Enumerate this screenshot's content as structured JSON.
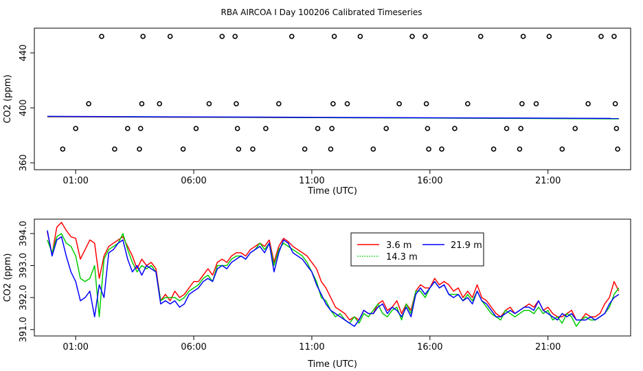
{
  "title": "RBA AIRCOA I  Day 100206  Calibrated Timeseries",
  "chart_data": [
    {
      "type": "scatter",
      "xlabel": "Time (UTC)",
      "ylabel": "CO2 (ppm)",
      "xlim": [
        -0.75,
        24.5
      ],
      "ylim": [
        355,
        458
      ],
      "xticks": [
        {
          "value": 1,
          "label": "01:00"
        },
        {
          "value": 6,
          "label": "06:00"
        },
        {
          "value": 11,
          "label": "11:00"
        },
        {
          "value": 16,
          "label": "16:00"
        },
        {
          "value": 21,
          "label": "21:00"
        }
      ],
      "yticks": [
        {
          "value": 360,
          "label": "360"
        },
        {
          "value": 400,
          "label": "400"
        },
        {
          "value": 440,
          "label": "440"
        }
      ],
      "grid": false,
      "marker": "open-circle",
      "circle_points": [
        {
          "x": 0.45,
          "y": 370
        },
        {
          "x": 1.0,
          "y": 385
        },
        {
          "x": 1.55,
          "y": 403
        },
        {
          "x": 2.1,
          "y": 452
        },
        {
          "x": 2.65,
          "y": 370
        },
        {
          "x": 3.2,
          "y": 385
        },
        {
          "x": 3.7,
          "y": 370
        },
        {
          "x": 3.75,
          "y": 385
        },
        {
          "x": 3.8,
          "y": 403
        },
        {
          "x": 3.85,
          "y": 452
        },
        {
          "x": 4.55,
          "y": 403
        },
        {
          "x": 5.0,
          "y": 452
        },
        {
          "x": 5.55,
          "y": 370
        },
        {
          "x": 6.1,
          "y": 385
        },
        {
          "x": 6.65,
          "y": 403
        },
        {
          "x": 7.2,
          "y": 452
        },
        {
          "x": 7.75,
          "y": 452
        },
        {
          "x": 7.8,
          "y": 403
        },
        {
          "x": 7.85,
          "y": 385
        },
        {
          "x": 7.9,
          "y": 370
        },
        {
          "x": 8.5,
          "y": 370
        },
        {
          "x": 9.05,
          "y": 385
        },
        {
          "x": 9.6,
          "y": 403
        },
        {
          "x": 10.15,
          "y": 452
        },
        {
          "x": 10.7,
          "y": 370
        },
        {
          "x": 11.25,
          "y": 385
        },
        {
          "x": 11.8,
          "y": 370
        },
        {
          "x": 11.85,
          "y": 385
        },
        {
          "x": 11.9,
          "y": 403
        },
        {
          "x": 11.95,
          "y": 452
        },
        {
          "x": 12.5,
          "y": 403
        },
        {
          "x": 13.05,
          "y": 452
        },
        {
          "x": 13.6,
          "y": 370
        },
        {
          "x": 14.15,
          "y": 385
        },
        {
          "x": 14.7,
          "y": 403
        },
        {
          "x": 15.25,
          "y": 452
        },
        {
          "x": 15.8,
          "y": 452
        },
        {
          "x": 15.85,
          "y": 403
        },
        {
          "x": 15.9,
          "y": 385
        },
        {
          "x": 15.95,
          "y": 370
        },
        {
          "x": 16.5,
          "y": 370
        },
        {
          "x": 17.05,
          "y": 385
        },
        {
          "x": 17.6,
          "y": 403
        },
        {
          "x": 18.15,
          "y": 452
        },
        {
          "x": 18.7,
          "y": 370
        },
        {
          "x": 19.25,
          "y": 385
        },
        {
          "x": 19.8,
          "y": 370
        },
        {
          "x": 19.85,
          "y": 385
        },
        {
          "x": 19.9,
          "y": 403
        },
        {
          "x": 19.95,
          "y": 452
        },
        {
          "x": 20.5,
          "y": 403
        },
        {
          "x": 21.05,
          "y": 452
        },
        {
          "x": 21.6,
          "y": 370
        },
        {
          "x": 22.15,
          "y": 385
        },
        {
          "x": 22.7,
          "y": 403
        },
        {
          "x": 23.25,
          "y": 452
        },
        {
          "x": 23.8,
          "y": 452
        },
        {
          "x": 23.85,
          "y": 403
        },
        {
          "x": 23.9,
          "y": 385
        },
        {
          "x": 23.95,
          "y": 370
        }
      ],
      "series": [
        {
          "color": "#ff0000",
          "x": [
            -0.2,
            24.0
          ],
          "values": [
            393.5,
            392.2
          ]
        },
        {
          "color": "#00cc00",
          "x": [
            -0.2,
            24.0
          ],
          "values": [
            393.7,
            392.0
          ]
        },
        {
          "color": "#0000ff",
          "x": [
            -0.2,
            24.0
          ],
          "values": [
            393.8,
            392.3
          ]
        }
      ]
    },
    {
      "type": "line",
      "xlabel": "Time (UTC)",
      "ylabel": "CO2 (ppm)",
      "xlim": [
        -0.75,
        24.5
      ],
      "ylim": [
        390.8,
        394.45
      ],
      "xticks": [
        {
          "value": 1,
          "label": "01:00"
        },
        {
          "value": 6,
          "label": "06:00"
        },
        {
          "value": 11,
          "label": "11:00"
        },
        {
          "value": 16,
          "label": "16:00"
        },
        {
          "value": 21,
          "label": "21:00"
        }
      ],
      "yticks": [
        {
          "value": 391.0,
          "label": "391.0"
        },
        {
          "value": 392.0,
          "label": "392.0"
        },
        {
          "value": 393.0,
          "label": "393.0"
        },
        {
          "value": 394.0,
          "label": "394.0"
        }
      ],
      "grid": false,
      "legend": {
        "placement": "top-center",
        "items": [
          {
            "label": "3.6 m",
            "color": "#ff0000",
            "dash": "solid"
          },
          {
            "label": "21.9 m",
            "color": "#0000ff",
            "dash": "solid"
          },
          {
            "label": "14.3 m",
            "color": "#00cc00",
            "dash": "dotted"
          }
        ]
      },
      "x": [
        -0.2,
        0.0,
        0.2,
        0.4,
        0.6,
        0.8,
        1.0,
        1.2,
        1.4,
        1.6,
        1.8,
        2.0,
        2.2,
        2.4,
        2.6,
        2.8,
        3.0,
        3.2,
        3.4,
        3.6,
        3.8,
        4.0,
        4.2,
        4.4,
        4.6,
        4.8,
        5.0,
        5.2,
        5.4,
        5.6,
        5.8,
        6.0,
        6.2,
        6.4,
        6.6,
        6.8,
        7.0,
        7.2,
        7.4,
        7.6,
        7.8,
        8.0,
        8.2,
        8.4,
        8.6,
        8.8,
        9.0,
        9.2,
        9.4,
        9.6,
        9.8,
        10.0,
        10.2,
        10.4,
        10.6,
        10.8,
        11.0,
        11.2,
        11.4,
        11.6,
        11.8,
        12.0,
        12.2,
        12.4,
        12.6,
        12.8,
        13.0,
        13.2,
        13.4,
        13.6,
        13.8,
        14.0,
        14.2,
        14.4,
        14.6,
        14.8,
        15.0,
        15.2,
        15.4,
        15.6,
        15.8,
        16.0,
        16.2,
        16.4,
        16.6,
        16.8,
        17.0,
        17.2,
        17.4,
        17.6,
        17.8,
        18.0,
        18.2,
        18.4,
        18.6,
        18.8,
        19.0,
        19.2,
        19.4,
        19.6,
        19.8,
        20.0,
        20.2,
        20.4,
        20.6,
        20.8,
        21.0,
        21.2,
        21.4,
        21.6,
        21.8,
        22.0,
        22.2,
        22.4,
        22.6,
        22.8,
        23.0,
        23.2,
        23.4,
        23.6,
        23.8,
        24.0
      ],
      "series": [
        {
          "name": "3.6 m",
          "color": "#ff0000",
          "values": [
            394.05,
            393.35,
            394.2,
            394.35,
            394.1,
            393.9,
            393.85,
            393.2,
            393.5,
            393.8,
            393.7,
            392.6,
            393.3,
            393.6,
            393.7,
            393.8,
            393.9,
            393.6,
            393.3,
            392.9,
            393.2,
            393.0,
            393.1,
            392.9,
            391.9,
            392.1,
            391.9,
            392.2,
            392.0,
            392.1,
            392.3,
            392.5,
            392.5,
            392.7,
            392.9,
            392.7,
            393.1,
            393.2,
            393.1,
            393.3,
            393.4,
            393.4,
            393.3,
            393.5,
            393.6,
            393.7,
            393.6,
            393.8,
            393.1,
            393.6,
            393.85,
            393.75,
            393.6,
            393.5,
            393.4,
            393.3,
            393.1,
            392.9,
            392.5,
            392.3,
            392.0,
            391.7,
            391.6,
            391.5,
            391.3,
            391.4,
            391.3,
            391.6,
            391.5,
            391.5,
            391.8,
            391.9,
            391.6,
            391.7,
            391.9,
            391.5,
            391.8,
            391.6,
            392.2,
            392.4,
            392.3,
            392.3,
            392.6,
            392.4,
            392.5,
            392.4,
            392.2,
            392.3,
            392.0,
            392.2,
            392.0,
            392.4,
            392.0,
            391.9,
            391.7,
            391.5,
            391.4,
            391.6,
            391.7,
            391.5,
            391.6,
            391.7,
            391.8,
            391.7,
            391.9,
            391.6,
            391.7,
            391.5,
            391.4,
            391.4,
            391.5,
            391.6,
            391.3,
            391.3,
            391.5,
            391.4,
            391.4,
            391.5,
            391.8,
            392.0,
            392.5,
            392.2
          ]
        },
        {
          "name": "14.3 m",
          "color": "#00cc00",
          "values": [
            393.8,
            393.4,
            393.9,
            394.0,
            393.7,
            393.6,
            393.3,
            392.6,
            392.5,
            392.6,
            393.0,
            391.4,
            393.2,
            393.5,
            393.6,
            393.7,
            394.0,
            393.5,
            393.1,
            392.8,
            393.0,
            392.9,
            393.0,
            392.8,
            391.9,
            392.0,
            392.0,
            392.0,
            391.9,
            392.0,
            392.2,
            392.3,
            392.4,
            392.6,
            392.7,
            392.5,
            393.0,
            393.0,
            393.0,
            393.2,
            393.3,
            393.3,
            393.2,
            393.4,
            393.5,
            393.7,
            393.5,
            393.7,
            393.0,
            393.5,
            393.7,
            393.6,
            393.5,
            393.4,
            393.3,
            393.1,
            392.8,
            392.5,
            392.0,
            391.9,
            391.6,
            391.4,
            391.5,
            391.3,
            391.2,
            391.4,
            391.2,
            391.5,
            391.4,
            391.6,
            391.8,
            391.5,
            391.4,
            391.6,
            391.7,
            391.3,
            391.8,
            391.5,
            392.2,
            392.2,
            392.0,
            392.3,
            392.5,
            392.3,
            392.4,
            392.1,
            392.1,
            392.1,
            391.9,
            392.1,
            391.9,
            392.2,
            391.9,
            391.7,
            391.5,
            391.4,
            391.3,
            391.6,
            391.5,
            391.4,
            391.5,
            391.6,
            391.6,
            391.5,
            391.7,
            391.5,
            391.6,
            391.3,
            391.4,
            391.2,
            391.5,
            391.4,
            391.1,
            391.3,
            391.4,
            391.3,
            391.3,
            391.4,
            391.5,
            391.7,
            392.1,
            392.3
          ]
        },
        {
          "name": "21.9 m",
          "color": "#0000ff",
          "values": [
            394.1,
            393.3,
            393.8,
            393.9,
            393.3,
            392.8,
            392.5,
            391.9,
            392.0,
            392.2,
            391.4,
            392.4,
            392.0,
            393.4,
            393.5,
            393.7,
            393.8,
            393.2,
            392.8,
            393.0,
            392.7,
            393.0,
            392.9,
            392.8,
            391.8,
            391.9,
            391.8,
            391.9,
            391.7,
            391.8,
            392.1,
            392.2,
            392.3,
            392.5,
            392.6,
            392.5,
            392.9,
            393.0,
            392.9,
            393.1,
            393.2,
            393.3,
            393.2,
            393.4,
            393.5,
            393.6,
            393.4,
            393.7,
            392.8,
            393.4,
            393.8,
            393.7,
            393.4,
            393.3,
            393.2,
            393.0,
            392.8,
            392.4,
            392.1,
            391.8,
            391.6,
            391.5,
            391.4,
            391.3,
            391.2,
            391.1,
            391.3,
            391.6,
            391.5,
            391.5,
            391.7,
            391.8,
            391.5,
            391.7,
            391.6,
            391.4,
            391.7,
            391.4,
            392.1,
            392.3,
            392.1,
            392.3,
            392.5,
            392.3,
            392.4,
            392.1,
            392.0,
            392.1,
            391.9,
            392.0,
            391.8,
            392.2,
            391.9,
            391.8,
            391.6,
            391.4,
            391.4,
            391.5,
            391.6,
            391.5,
            391.6,
            391.7,
            391.7,
            391.6,
            391.9,
            391.6,
            391.5,
            391.4,
            391.3,
            391.5,
            391.4,
            391.5,
            391.3,
            391.3,
            391.3,
            391.4,
            391.3,
            391.4,
            391.5,
            391.8,
            392.0,
            392.1
          ]
        }
      ]
    }
  ]
}
